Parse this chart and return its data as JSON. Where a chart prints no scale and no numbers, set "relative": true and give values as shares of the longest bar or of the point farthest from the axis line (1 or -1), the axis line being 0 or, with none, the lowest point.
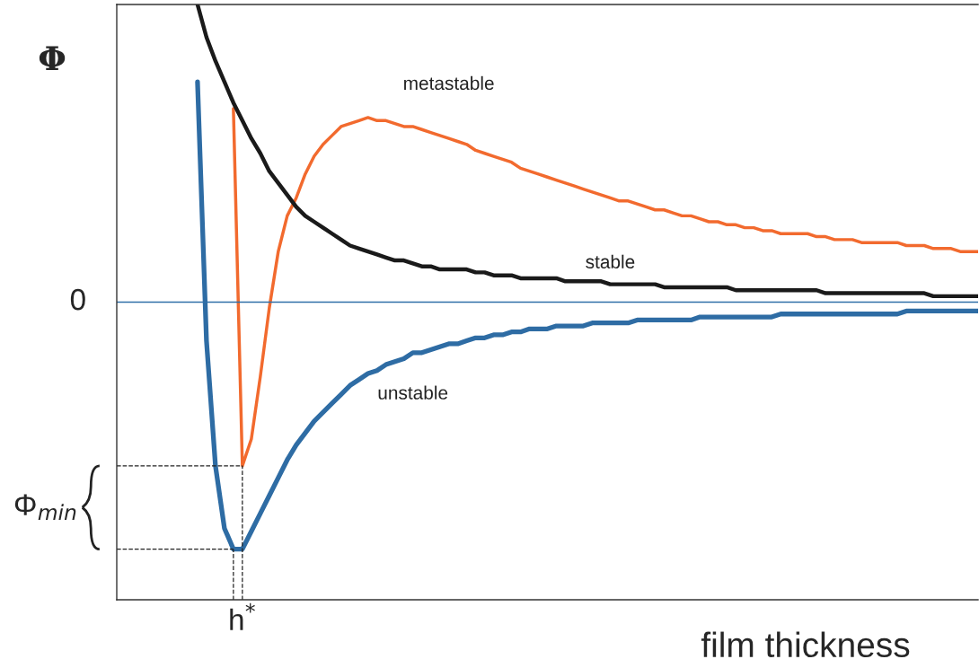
{
  "chart_data": {
    "type": "line",
    "relative": true,
    "ylabel": "Φ",
    "xlabel": "film thickness",
    "categories": [
      null,
      null,
      null,
      null,
      null,
      null,
      null,
      null,
      null,
      null,
      null,
      null,
      null,
      null,
      null,
      null,
      null,
      null,
      null,
      null,
      null,
      null,
      null,
      null,
      null,
      null,
      null,
      null,
      null,
      null,
      null,
      null,
      null,
      null,
      null,
      null,
      null,
      null,
      null,
      null,
      null,
      null,
      null,
      null,
      null,
      null,
      null,
      null,
      null,
      null,
      null,
      null,
      null,
      null,
      null,
      null,
      null,
      null,
      null,
      null,
      null,
      null,
      null,
      null,
      null,
      null,
      null,
      null,
      null,
      null,
      null,
      null,
      null,
      null,
      null,
      null,
      null,
      null,
      null,
      null,
      null,
      null,
      null,
      null,
      null,
      null,
      null,
      null,
      null,
      null,
      null,
      null,
      null,
      null,
      null,
      null,
      null
    ],
    "series": [
      {
        "name": "metastable",
        "color": "#f26a2e",
        "values": [
          null,
          null,
          null,
          null,
          null,
          null,
          null,
          null,
          null,
          null,
          null,
          null,
          null,
          0.65,
          -0.55,
          -0.46,
          -0.25,
          -0.02,
          0.17,
          0.29,
          0.35,
          0.43,
          0.49,
          0.53,
          0.56,
          0.59,
          0.6,
          0.61,
          0.62,
          0.61,
          0.61,
          0.6,
          0.59,
          0.59,
          0.58,
          0.57,
          0.56,
          0.55,
          0.54,
          0.53,
          0.51,
          0.5,
          0.49,
          0.48,
          0.47,
          0.45,
          0.44,
          0.43,
          0.42,
          0.41,
          0.4,
          0.39,
          0.38,
          0.37,
          0.36,
          0.35,
          0.34,
          0.34,
          0.33,
          0.32,
          0.31,
          0.31,
          0.3,
          0.29,
          0.29,
          0.28,
          0.27,
          0.27,
          0.26,
          0.26,
          0.25,
          0.25,
          0.24,
          0.24,
          0.23,
          0.23,
          0.23,
          0.23,
          0.22,
          0.22,
          0.21,
          0.21,
          0.21,
          0.2,
          0.2,
          0.2,
          0.2,
          0.2,
          0.19,
          0.19,
          0.19,
          0.18,
          0.18,
          0.18,
          0.17,
          0.17,
          0.17
        ]
      },
      {
        "name": "stable",
        "color": "#1a1a1a",
        "values": [
          null,
          null,
          null,
          null,
          null,
          null,
          null,
          null,
          null,
          1.0,
          0.89,
          0.81,
          0.74,
          0.67,
          0.61,
          0.55,
          0.5,
          0.44,
          0.4,
          0.36,
          0.32,
          0.29,
          0.27,
          0.25,
          0.23,
          0.21,
          0.19,
          0.18,
          0.17,
          0.16,
          0.15,
          0.14,
          0.14,
          0.13,
          0.12,
          0.12,
          0.11,
          0.11,
          0.11,
          0.11,
          0.1,
          0.1,
          0.09,
          0.09,
          0.09,
          0.08,
          0.08,
          0.08,
          0.08,
          0.08,
          0.07,
          0.07,
          0.07,
          0.07,
          0.07,
          0.06,
          0.06,
          0.06,
          0.06,
          0.06,
          0.06,
          0.05,
          0.05,
          0.05,
          0.05,
          0.05,
          0.05,
          0.05,
          0.05,
          0.04,
          0.04,
          0.04,
          0.04,
          0.04,
          0.04,
          0.04,
          0.04,
          0.04,
          0.04,
          0.03,
          0.03,
          0.03,
          0.03,
          0.03,
          0.03,
          0.03,
          0.03,
          0.03,
          0.03,
          0.03,
          0.03,
          0.02,
          0.02,
          0.02,
          0.02,
          0.02,
          0.02
        ]
      },
      {
        "name": "unstable",
        "color": "#2e6ca4",
        "values": [
          null,
          null,
          null,
          null,
          null,
          null,
          null,
          null,
          null,
          0.74,
          -0.13,
          -0.55,
          -0.76,
          -0.83,
          -0.83,
          -0.77,
          -0.71,
          -0.65,
          -0.59,
          -0.53,
          -0.48,
          -0.44,
          -0.4,
          -0.37,
          -0.34,
          -0.31,
          -0.28,
          -0.26,
          -0.24,
          -0.23,
          -0.21,
          -0.2,
          -0.19,
          -0.17,
          -0.17,
          -0.16,
          -0.15,
          -0.14,
          -0.14,
          -0.13,
          -0.12,
          -0.12,
          -0.11,
          -0.11,
          -0.1,
          -0.1,
          -0.09,
          -0.09,
          -0.09,
          -0.08,
          -0.08,
          -0.08,
          -0.08,
          -0.07,
          -0.07,
          -0.07,
          -0.07,
          -0.07,
          -0.06,
          -0.06,
          -0.06,
          -0.06,
          -0.06,
          -0.06,
          -0.06,
          -0.05,
          -0.05,
          -0.05,
          -0.05,
          -0.05,
          -0.05,
          -0.05,
          -0.05,
          -0.05,
          -0.04,
          -0.04,
          -0.04,
          -0.04,
          -0.04,
          -0.04,
          -0.04,
          -0.04,
          -0.04,
          -0.04,
          -0.04,
          -0.04,
          -0.04,
          -0.04,
          -0.03,
          -0.03,
          -0.03,
          -0.03,
          -0.03,
          -0.03,
          -0.03,
          -0.03,
          -0.03
        ]
      }
    ],
    "ref_lines": [
      {
        "axis": "y",
        "value": 0,
        "label": "0",
        "color": "#2f6fa8"
      }
    ],
    "annotations": [
      "Φ$_{min}$",
      "h$^{*}$"
    ]
  }
}
